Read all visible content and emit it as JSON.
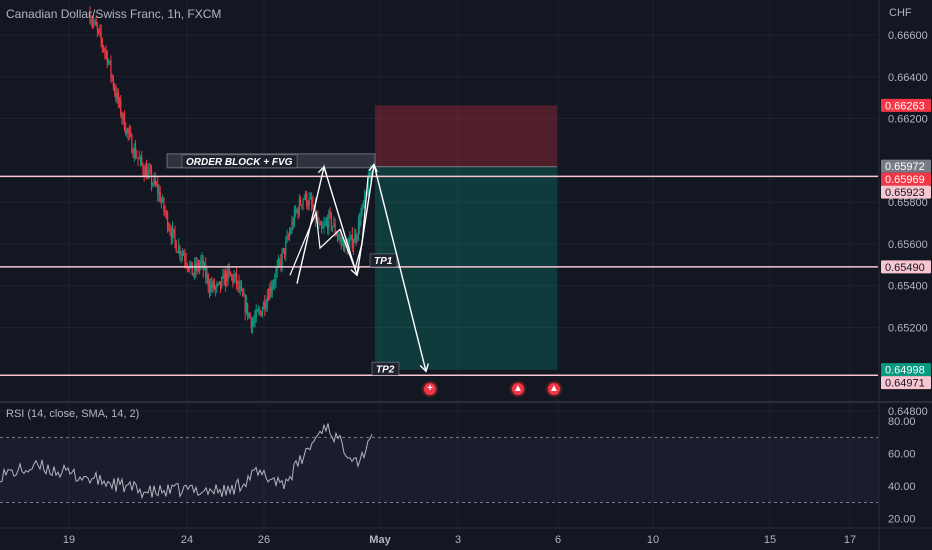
{
  "header": {
    "symbol": "Canadian Dollar/Swiss Franc, 1h, FXCM",
    "currency": "CHF"
  },
  "rsi": {
    "title": "RSI (14, close, SMA, 14, 2)",
    "levels": [
      80.0,
      60.0,
      40.0,
      20.0
    ],
    "band_upper": 70,
    "band_lower": 30,
    "ylim": [
      18,
      88
    ]
  },
  "chart_data": [
    {
      "type": "candlestick",
      "title": "",
      "x_tick_labels": [
        "19",
        "24",
        "26",
        "May",
        "3",
        "6",
        "10",
        "15",
        "17"
      ],
      "y_tick_labels": [
        "0.66600",
        "0.66400",
        "0.66200",
        "0.65800",
        "0.65600",
        "0.65400",
        "0.65200",
        "0.64800"
      ],
      "ylim": [
        0.6475,
        0.667
      ],
      "path_points": [
        0.667,
        0.666,
        0.665,
        0.6632,
        0.6618,
        0.6606,
        0.6598,
        0.6592,
        0.6585,
        0.6572,
        0.656,
        0.6555,
        0.6546,
        0.6551,
        0.654,
        0.6538,
        0.6545,
        0.6543,
        0.6532,
        0.6522,
        0.6528,
        0.6538,
        0.6548,
        0.656,
        0.6574,
        0.6583,
        0.6578,
        0.6565,
        0.6572,
        0.6564,
        0.6558,
        0.6563,
        0.6578,
        0.6597
      ],
      "levels": [
        {
          "name": "level-upper",
          "value": 0.65923
        },
        {
          "name": "level-tp1",
          "value": 0.6549
        },
        {
          "name": "level-tp2",
          "value": 0.64971
        }
      ],
      "price_labels": [
        {
          "name": "price-label-stop",
          "text": "0.66263",
          "value": 0.66263,
          "color": "#f23645"
        },
        {
          "name": "price-label-current",
          "text": "0.65972",
          "value": 0.65972,
          "color": "#787b86"
        },
        {
          "name": "price-label-entry",
          "text": "0.65969",
          "value": 0.65969,
          "color": "#f23645"
        },
        {
          "name": "price-label-upper",
          "text": "0.65923",
          "value": 0.65923,
          "color": "#f7c6d0"
        },
        {
          "name": "price-label-tp1",
          "text": "0.65490",
          "value": 0.6549,
          "color": "#f7c6d0"
        },
        {
          "name": "price-label-target",
          "text": "0.64998",
          "value": 0.64998,
          "color": "#089981"
        },
        {
          "name": "price-label-tp2",
          "text": "0.64971",
          "value": 0.64971,
          "color": "#f7c6d0"
        }
      ],
      "position": {
        "entry": 0.65969,
        "stop": 0.66263,
        "target": 0.64998
      },
      "annotations": [
        {
          "name": "order-block-label",
          "text": "ORDER BLOCK + FVG",
          "value": 0.65969
        },
        {
          "name": "tp1-label",
          "text": "TP1",
          "value": 0.6549
        },
        {
          "name": "tp2-label",
          "text": "TP2",
          "value": 0.64971
        }
      ]
    }
  ],
  "colors": {
    "background": "#131722",
    "grid": "#1e2230",
    "candle_up": "#089981",
    "candle_down": "#f23645",
    "level_line": "#f7c6d0",
    "stop_zone": "#f23645",
    "target_zone": "#089981",
    "rsi_line": "#b2b5be",
    "rsi_band": "#7e57c2"
  },
  "events": [
    {
      "name": "event-icon-1",
      "glyph": "+"
    },
    {
      "name": "event-icon-2",
      "glyph": "▲"
    },
    {
      "name": "event-icon-3",
      "glyph": "▲"
    }
  ]
}
